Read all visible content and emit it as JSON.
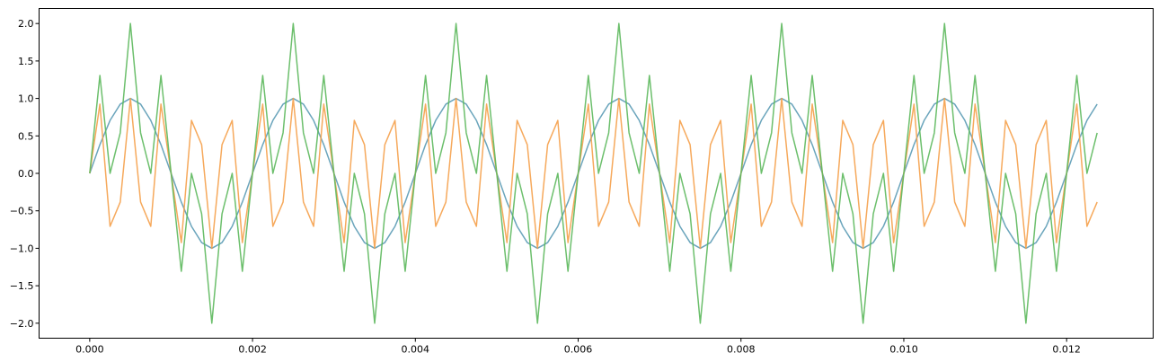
{
  "chart_data": {
    "type": "line",
    "title": "",
    "xlabel": "",
    "ylabel": "",
    "xlim": [
      -0.000622,
      0.013063
    ],
    "ylim": [
      -2.2,
      2.2
    ],
    "x_ticks": [
      0.0,
      0.002,
      0.004,
      0.006,
      0.008,
      0.01,
      0.012
    ],
    "x_tick_labels": [
      "0.000",
      "0.002",
      "0.004",
      "0.006",
      "0.008",
      "0.010",
      "0.012"
    ],
    "y_ticks": [
      -2.0,
      -1.5,
      -1.0,
      -0.5,
      0.0,
      0.5,
      1.0,
      1.5,
      2.0
    ],
    "y_tick_labels": [
      "−2.0",
      "−1.5",
      "−1.0",
      "−0.5",
      "0.0",
      "0.5",
      "1.0",
      "1.5",
      "2.0"
    ],
    "grid": false,
    "legend": "none",
    "sample_rate": 8000,
    "series": [
      {
        "color": "#5b9bb5",
        "frequency_hz": 500,
        "amplitude": 1.0,
        "x": [
          0.0,
          0.000125,
          0.00025,
          0.000375,
          0.0005,
          0.000625,
          0.00075,
          0.000875,
          0.001,
          0.001125,
          0.00125,
          0.001375,
          0.0015,
          0.001625,
          0.00175,
          0.001875,
          0.002,
          0.002125,
          0.00225,
          0.002375,
          0.0025,
          0.002625,
          0.00275,
          0.002875,
          0.003,
          0.003125,
          0.00325,
          0.003375,
          0.0035,
          0.003625,
          0.00375,
          0.003875,
          0.004,
          0.004125,
          0.00425,
          0.004375,
          0.0045,
          0.004625,
          0.00475,
          0.004875,
          0.005,
          0.005125,
          0.00525,
          0.005375,
          0.0055,
          0.005625,
          0.00575,
          0.005875,
          0.006,
          0.006125,
          0.00625,
          0.006375,
          0.0065,
          0.006625,
          0.00675,
          0.006875,
          0.007,
          0.007125,
          0.00725,
          0.007375,
          0.0075,
          0.007625,
          0.00775,
          0.007875,
          0.008,
          0.008125,
          0.00825,
          0.008375,
          0.0085,
          0.008625,
          0.00875,
          0.008875,
          0.009,
          0.009125,
          0.00925,
          0.009375,
          0.0095,
          0.009625,
          0.00975,
          0.009875,
          0.01,
          0.010125,
          0.01025,
          0.010375,
          0.0105,
          0.010625,
          0.01075,
          0.010875,
          0.011,
          0.011125,
          0.01125,
          0.011375,
          0.0115,
          0.011625,
          0.01175,
          0.011875,
          0.012,
          0.012125,
          0.01225,
          0.012375
        ],
        "y": [
          0.0,
          0.383,
          0.707,
          0.924,
          1.0,
          0.924,
          0.707,
          0.383,
          0.0,
          -0.383,
          -0.707,
          -0.924,
          -1.0,
          -0.924,
          -0.707,
          -0.383,
          0.0,
          0.383,
          0.707,
          0.924,
          1.0,
          0.924,
          0.707,
          0.383,
          0.0,
          -0.383,
          -0.707,
          -0.924,
          -1.0,
          -0.924,
          -0.707,
          -0.383,
          0.0,
          0.383,
          0.707,
          0.924,
          1.0,
          0.924,
          0.707,
          0.383,
          0.0,
          -0.383,
          -0.707,
          -0.924,
          -1.0,
          -0.924,
          -0.707,
          -0.383,
          0.0,
          0.383,
          0.707,
          0.924,
          1.0,
          0.924,
          0.707,
          0.383,
          0.0,
          -0.383,
          -0.707,
          -0.924,
          -1.0,
          -0.924,
          -0.707,
          -0.383,
          0.0,
          0.383,
          0.707,
          0.924,
          1.0,
          0.924,
          0.707,
          0.383,
          0.0,
          -0.383,
          -0.707,
          -0.924,
          -1.0,
          -0.924,
          -0.707,
          -0.383,
          0.0,
          0.383,
          0.707,
          0.924,
          1.0,
          0.924,
          0.707,
          0.383,
          0.0,
          -0.383,
          -0.707,
          -0.924,
          -1.0,
          -0.924,
          -0.707,
          -0.383,
          0.0,
          0.383,
          0.707,
          0.924
        ]
      },
      {
        "color": "#f5a04a",
        "frequency_hz": 3500,
        "amplitude": 1.0,
        "x": [
          0.0,
          0.000125,
          0.00025,
          0.000375,
          0.0005,
          0.000625,
          0.00075,
          0.000875,
          0.001,
          0.001125,
          0.00125,
          0.001375,
          0.0015,
          0.001625,
          0.00175,
          0.001875,
          0.002,
          0.002125,
          0.00225,
          0.002375,
          0.0025,
          0.002625,
          0.00275,
          0.002875,
          0.003,
          0.003125,
          0.00325,
          0.003375,
          0.0035,
          0.003625,
          0.00375,
          0.003875,
          0.004,
          0.004125,
          0.00425,
          0.004375,
          0.0045,
          0.004625,
          0.00475,
          0.004875,
          0.005,
          0.005125,
          0.00525,
          0.005375,
          0.0055,
          0.005625,
          0.00575,
          0.005875,
          0.006,
          0.006125,
          0.00625,
          0.006375,
          0.0065,
          0.006625,
          0.00675,
          0.006875,
          0.007,
          0.007125,
          0.00725,
          0.007375,
          0.0075,
          0.007625,
          0.00775,
          0.007875,
          0.008,
          0.008125,
          0.00825,
          0.008375,
          0.0085,
          0.008625,
          0.00875,
          0.008875,
          0.009,
          0.009125,
          0.00925,
          0.009375,
          0.0095,
          0.009625,
          0.00975,
          0.009875,
          0.01,
          0.010125,
          0.01025,
          0.010375,
          0.0105,
          0.010625,
          0.01075,
          0.010875,
          0.011,
          0.011125,
          0.01125,
          0.011375,
          0.0115,
          0.011625,
          0.01175,
          0.011875,
          0.012,
          0.012125,
          0.01225,
          0.012375
        ],
        "y": [
          0.0,
          0.924,
          -0.707,
          -0.383,
          1.0,
          -0.383,
          -0.707,
          0.924,
          0.0,
          -0.924,
          0.707,
          0.383,
          -1.0,
          0.383,
          0.707,
          -0.924,
          0.0,
          0.924,
          -0.707,
          -0.383,
          1.0,
          -0.383,
          -0.707,
          0.924,
          0.0,
          -0.924,
          0.707,
          0.383,
          -1.0,
          0.383,
          0.707,
          -0.924,
          0.0,
          0.924,
          -0.707,
          -0.383,
          1.0,
          -0.383,
          -0.707,
          0.924,
          0.0,
          -0.924,
          0.707,
          0.383,
          -1.0,
          0.383,
          0.707,
          -0.924,
          0.0,
          0.924,
          -0.707,
          -0.383,
          1.0,
          -0.383,
          -0.707,
          0.924,
          0.0,
          -0.924,
          0.707,
          0.383,
          -1.0,
          0.383,
          0.707,
          -0.924,
          0.0,
          0.924,
          -0.707,
          -0.383,
          1.0,
          -0.383,
          -0.707,
          0.924,
          0.0,
          -0.924,
          0.707,
          0.383,
          -1.0,
          0.383,
          0.707,
          -0.924,
          0.0,
          0.924,
          -0.707,
          -0.383,
          1.0,
          -0.383,
          -0.707,
          0.924,
          0.0,
          -0.924,
          0.707,
          0.383,
          -1.0,
          0.383,
          0.707,
          -0.924,
          0.0,
          0.924,
          -0.707,
          -0.383
        ]
      },
      {
        "color": "#5cb85c",
        "frequency_hz": null,
        "amplitude": 2.0,
        "x": [
          0.0,
          0.000125,
          0.00025,
          0.000375,
          0.0005,
          0.000625,
          0.00075,
          0.000875,
          0.001,
          0.001125,
          0.00125,
          0.001375,
          0.0015,
          0.001625,
          0.00175,
          0.001875,
          0.002,
          0.002125,
          0.00225,
          0.002375,
          0.0025,
          0.002625,
          0.00275,
          0.002875,
          0.003,
          0.003125,
          0.00325,
          0.003375,
          0.0035,
          0.003625,
          0.00375,
          0.003875,
          0.004,
          0.004125,
          0.00425,
          0.004375,
          0.0045,
          0.004625,
          0.00475,
          0.004875,
          0.005,
          0.005125,
          0.00525,
          0.005375,
          0.0055,
          0.005625,
          0.00575,
          0.005875,
          0.006,
          0.006125,
          0.00625,
          0.006375,
          0.0065,
          0.006625,
          0.00675,
          0.006875,
          0.007,
          0.007125,
          0.00725,
          0.007375,
          0.0075,
          0.007625,
          0.00775,
          0.007875,
          0.008,
          0.008125,
          0.00825,
          0.008375,
          0.0085,
          0.008625,
          0.00875,
          0.008875,
          0.009,
          0.009125,
          0.00925,
          0.009375,
          0.0095,
          0.009625,
          0.00975,
          0.009875,
          0.01,
          0.010125,
          0.01025,
          0.010375,
          0.0105,
          0.010625,
          0.01075,
          0.010875,
          0.011,
          0.011125,
          0.01125,
          0.011375,
          0.0115,
          0.011625,
          0.01175,
          0.011875,
          0.012,
          0.012125,
          0.01225,
          0.012375
        ],
        "y": [
          0.0,
          1.307,
          0.0,
          0.541,
          2.0,
          0.541,
          0.0,
          1.307,
          0.0,
          -1.307,
          0.0,
          -0.541,
          -2.0,
          -0.541,
          0.0,
          -1.307,
          0.0,
          1.307,
          0.0,
          0.541,
          2.0,
          0.541,
          0.0,
          1.307,
          0.0,
          -1.307,
          0.0,
          -0.541,
          -2.0,
          -0.541,
          0.0,
          -1.307,
          0.0,
          1.307,
          0.0,
          0.541,
          2.0,
          0.541,
          0.0,
          1.307,
          0.0,
          -1.307,
          0.0,
          -0.541,
          -2.0,
          -0.541,
          0.0,
          -1.307,
          0.0,
          1.307,
          0.0,
          0.541,
          2.0,
          0.541,
          0.0,
          1.307,
          0.0,
          -1.307,
          0.0,
          -0.541,
          -2.0,
          -0.541,
          0.0,
          -1.307,
          0.0,
          1.307,
          0.0,
          0.541,
          2.0,
          0.541,
          0.0,
          1.307,
          0.0,
          -1.307,
          0.0,
          -0.541,
          -2.0,
          -0.541,
          0.0,
          -1.307,
          0.0,
          1.307,
          0.0,
          0.541,
          2.0,
          0.541,
          0.0,
          1.307,
          0.0,
          -1.307,
          0.0,
          -0.541,
          -2.0,
          -0.541,
          0.0,
          -1.307,
          0.0,
          1.307,
          0.0,
          0.541
        ]
      }
    ]
  }
}
